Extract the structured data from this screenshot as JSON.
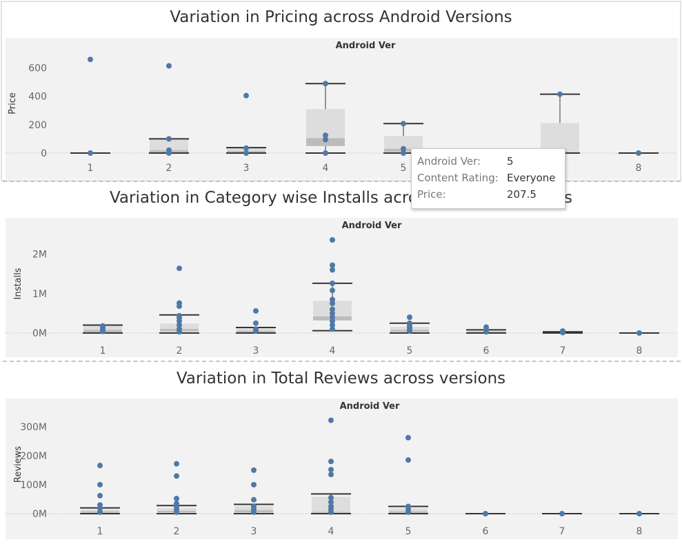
{
  "colors": {
    "panel": "#f2f2f2",
    "point": "#4e79a7",
    "box": "#dddddd",
    "median_band": "#bcbcbc",
    "whisker": "#333333"
  },
  "tooltip": {
    "rows": [
      {
        "key": "Android Ver:",
        "value": "5"
      },
      {
        "key": "Content Rating:",
        "value": "Everyone"
      },
      {
        "key": "Price:",
        "value": "207.5"
      }
    ]
  },
  "chart_data": [
    {
      "type": "boxplot",
      "title": "Variation in Pricing across Android Versions",
      "column_header": "Android Ver",
      "ylabel": "Price",
      "ylim": [
        -30,
        700
      ],
      "y_ticks": [
        {
          "v": 0,
          "label": "0"
        },
        {
          "v": 200,
          "label": "200"
        },
        {
          "v": 400,
          "label": "400"
        },
        {
          "v": 600,
          "label": "600"
        }
      ],
      "categories": [
        "1",
        "2",
        "3",
        "4",
        "5",
        "6",
        "7",
        "8"
      ],
      "boxes": [
        {
          "cat": "1",
          "low": 0,
          "q1": 0,
          "median": 0,
          "q3": 0,
          "high": 0
        },
        {
          "cat": "2",
          "low": 0,
          "q1": 5,
          "median": 20,
          "q3": 100,
          "high": 100
        },
        {
          "cat": "3",
          "low": 0,
          "q1": 3,
          "median": 15,
          "q3": 38,
          "high": 38
        },
        {
          "cat": "4",
          "low": 0,
          "q1": 50,
          "median": 105,
          "q3": 310,
          "high": 490
        },
        {
          "cat": "5",
          "low": 0,
          "q1": 8,
          "median": 30,
          "q3": 120,
          "high": 208
        },
        {
          "cat": "7",
          "low": 0,
          "q1": 0,
          "median": 0,
          "q3": 212,
          "high": 415
        },
        {
          "cat": "8",
          "low": 0,
          "q1": 0,
          "median": 0,
          "q3": 0,
          "high": 0
        }
      ],
      "points": [
        {
          "cat": "1",
          "values": [
            0,
            660
          ]
        },
        {
          "cat": "2",
          "values": [
            0,
            615,
            100,
            20
          ]
        },
        {
          "cat": "3",
          "values": [
            0,
            405,
            35
          ]
        },
        {
          "cat": "4",
          "values": [
            0,
            490,
            95,
            125
          ]
        },
        {
          "cat": "5",
          "values": [
            0,
            207.5,
            30
          ]
        },
        {
          "cat": "7",
          "values": [
            415
          ]
        },
        {
          "cat": "8",
          "values": [
            0
          ]
        }
      ]
    },
    {
      "type": "boxplot",
      "title": "Variation in Category wise Installs across Android Versions",
      "column_header": "Android Ver",
      "ylabel": "Installs",
      "ylim": [
        0,
        2500000
      ],
      "y_ticks": [
        {
          "v": 0,
          "label": "0M"
        },
        {
          "v": 1000000,
          "label": "1M"
        },
        {
          "v": 2000000,
          "label": "2M"
        }
      ],
      "categories": [
        "1",
        "2",
        "3",
        "4",
        "5",
        "6",
        "7",
        "8"
      ],
      "boxes": [
        {
          "cat": "1",
          "low": 0,
          "q1": 20000,
          "median": 80000,
          "q3": 180000,
          "high": 200000
        },
        {
          "cat": "2",
          "low": 0,
          "q1": 40000,
          "median": 100000,
          "q3": 240000,
          "high": 460000
        },
        {
          "cat": "3",
          "low": 0,
          "q1": 20000,
          "median": 60000,
          "q3": 120000,
          "high": 140000
        },
        {
          "cat": "4",
          "low": 60000,
          "q1": 320000,
          "median": 420000,
          "q3": 820000,
          "high": 1260000
        },
        {
          "cat": "5",
          "low": 0,
          "q1": 30000,
          "median": 80000,
          "q3": 160000,
          "high": 250000
        },
        {
          "cat": "6",
          "low": 0,
          "q1": 10000,
          "median": 30000,
          "q3": 60000,
          "high": 80000
        },
        {
          "cat": "7",
          "low": 0,
          "q1": 5000,
          "median": 10000,
          "q3": 20000,
          "high": 30000
        },
        {
          "cat": "8",
          "low": 0,
          "q1": 0,
          "median": 0,
          "q3": 0,
          "high": 0
        }
      ],
      "points": [
        {
          "cat": "1",
          "values": [
            40000,
            100000,
            150000,
            180000
          ]
        },
        {
          "cat": "2",
          "values": [
            30000,
            100000,
            200000,
            300000,
            380000,
            440000,
            680000,
            760000,
            1640000
          ]
        },
        {
          "cat": "3",
          "values": [
            50000,
            100000,
            250000,
            560000
          ]
        },
        {
          "cat": "4",
          "values": [
            100000,
            200000,
            300000,
            400000,
            500000,
            600000,
            750000,
            850000,
            1080000,
            1260000,
            1600000,
            1720000,
            2360000
          ]
        },
        {
          "cat": "5",
          "values": [
            50000,
            100000,
            150000,
            200000,
            250000,
            400000
          ]
        },
        {
          "cat": "6",
          "values": [
            30000,
            80000,
            150000
          ]
        },
        {
          "cat": "7",
          "values": [
            10000,
            30000,
            50000
          ]
        },
        {
          "cat": "8",
          "values": [
            0
          ]
        }
      ]
    },
    {
      "type": "boxplot",
      "title": "Variation in Total Reviews across versions",
      "column_header": "Android Ver",
      "ylabel": "Reviews",
      "ylim": [
        0,
        340000000
      ],
      "y_ticks": [
        {
          "v": 0,
          "label": "0M"
        },
        {
          "v": 100000000,
          "label": "100M"
        },
        {
          "v": 200000000,
          "label": "200M"
        },
        {
          "v": 300000000,
          "label": "300M"
        }
      ],
      "categories": [
        "1",
        "2",
        "3",
        "4",
        "5",
        "6",
        "7",
        "8"
      ],
      "boxes": [
        {
          "cat": "1",
          "low": 0,
          "q1": 3000000,
          "median": 8000000,
          "q3": 15000000,
          "high": 20000000
        },
        {
          "cat": "2",
          "low": 0,
          "q1": 4000000,
          "median": 10000000,
          "q3": 20000000,
          "high": 28000000
        },
        {
          "cat": "3",
          "low": 0,
          "q1": 4000000,
          "median": 12000000,
          "q3": 25000000,
          "high": 32000000
        },
        {
          "cat": "4",
          "low": 0,
          "q1": 3000000,
          "median": 6000000,
          "q3": 58000000,
          "high": 68000000
        },
        {
          "cat": "5",
          "low": 0,
          "q1": 3000000,
          "median": 8000000,
          "q3": 18000000,
          "high": 25000000
        },
        {
          "cat": "6",
          "low": 0,
          "q1": 0,
          "median": 0,
          "q3": 0,
          "high": 0
        },
        {
          "cat": "7",
          "low": 0,
          "q1": 0,
          "median": 0,
          "q3": 0,
          "high": 0
        },
        {
          "cat": "8",
          "low": 0,
          "q1": 0,
          "median": 0,
          "q3": 0,
          "high": 0
        }
      ],
      "points": [
        {
          "cat": "1",
          "values": [
            5000000,
            18000000,
            30000000,
            62000000,
            100000000,
            166000000
          ]
        },
        {
          "cat": "2",
          "values": [
            5000000,
            15000000,
            25000000,
            35000000,
            52000000,
            130000000,
            172000000
          ]
        },
        {
          "cat": "3",
          "values": [
            5000000,
            15000000,
            25000000,
            48000000,
            100000000,
            150000000
          ]
        },
        {
          "cat": "4",
          "values": [
            5000000,
            15000000,
            25000000,
            40000000,
            55000000,
            135000000,
            152000000,
            180000000,
            322000000
          ]
        },
        {
          "cat": "5",
          "values": [
            5000000,
            15000000,
            25000000,
            185000000,
            262000000
          ]
        },
        {
          "cat": "6",
          "values": [
            0
          ]
        },
        {
          "cat": "7",
          "values": [
            0
          ]
        },
        {
          "cat": "8",
          "values": [
            0
          ]
        }
      ]
    }
  ]
}
